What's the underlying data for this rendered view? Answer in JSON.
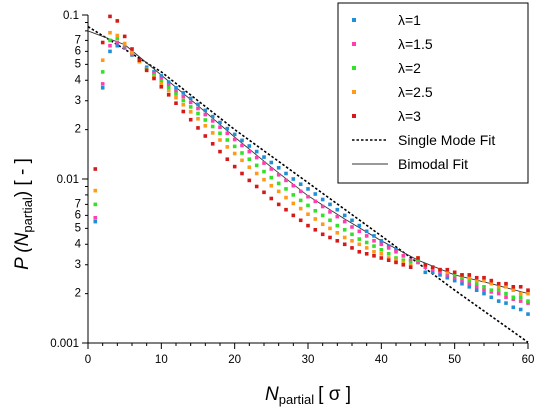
{
  "chart_data": {
    "type": "scatter",
    "title": "",
    "xlabel": {
      "main": "N",
      "sub": "partial",
      "unit": "[ σ ]"
    },
    "ylabel": {
      "main": "P (N",
      "sub": "partial",
      "tail": ") [ - ]"
    },
    "xlim": [
      0,
      60
    ],
    "ylim": [
      0.001,
      0.1
    ],
    "yscale": "log",
    "grid": false,
    "legend": "top-right",
    "x_ticks": [
      0,
      10,
      20,
      30,
      40,
      50,
      60
    ],
    "y_decade_labels": [
      "0.001",
      "0.01",
      "0.1"
    ],
    "y_minor_labels": [
      "2",
      "3",
      "4",
      "5",
      "6",
      "7"
    ],
    "series": [
      {
        "name": "λ=1",
        "color": "#1f8fd6",
        "x": [
          1,
          2,
          3,
          4,
          5,
          6,
          7,
          8,
          9,
          10,
          11,
          12,
          13,
          14,
          15,
          16,
          17,
          18,
          19,
          20,
          21,
          22,
          23,
          24,
          25,
          26,
          27,
          28,
          29,
          30,
          31,
          32,
          33,
          34,
          35,
          36,
          37,
          38,
          39,
          40,
          41,
          42,
          43,
          44,
          45,
          46,
          47,
          48,
          49,
          50,
          51,
          52,
          53,
          54,
          55,
          56,
          57,
          58,
          59,
          60
        ],
        "y": [
          0.0055,
          0.036,
          0.06,
          0.065,
          0.063,
          0.057,
          0.052,
          0.048,
          0.045,
          0.0425,
          0.039,
          0.036,
          0.0335,
          0.031,
          0.0285,
          0.0262,
          0.024,
          0.0221,
          0.0203,
          0.0187,
          0.0172,
          0.0159,
          0.0147,
          0.0136,
          0.0126,
          0.0117,
          0.0108,
          0.01,
          0.0093,
          0.0087,
          0.0081,
          0.0075,
          0.007,
          0.0065,
          0.006,
          0.0056,
          0.0052,
          0.0048,
          0.0045,
          0.0042,
          0.0039,
          0.0037,
          0.0034,
          0.0032,
          0.0031,
          0.0027,
          0.0027,
          0.0026,
          0.0025,
          0.0024,
          0.0023,
          0.0022,
          0.0021,
          0.002,
          0.0019,
          0.0018,
          0.00175,
          0.00165,
          0.0016,
          0.0015
        ]
      },
      {
        "name": "λ=1.5",
        "color": "#ff3eb0",
        "x": [
          1,
          2,
          3,
          4,
          5,
          6,
          7,
          8,
          9,
          10,
          11,
          12,
          13,
          14,
          15,
          16,
          17,
          18,
          19,
          20,
          21,
          22,
          23,
          24,
          25,
          26,
          27,
          28,
          29,
          30,
          31,
          32,
          33,
          34,
          35,
          36,
          37,
          38,
          39,
          40,
          41,
          42,
          43,
          44,
          45,
          46,
          47,
          48,
          49,
          50,
          51,
          52,
          53,
          54,
          55,
          56,
          57,
          58,
          59,
          60
        ],
        "y": [
          0.0058,
          0.038,
          0.065,
          0.068,
          0.064,
          0.058,
          0.052,
          0.047,
          0.044,
          0.041,
          0.0375,
          0.0345,
          0.0318,
          0.0293,
          0.0269,
          0.0247,
          0.0226,
          0.0207,
          0.019,
          0.0174,
          0.016,
          0.0147,
          0.0135,
          0.0125,
          0.0115,
          0.0106,
          0.0098,
          0.0091,
          0.0084,
          0.0078,
          0.0073,
          0.0068,
          0.0063,
          0.0059,
          0.0055,
          0.0051,
          0.0048,
          0.0045,
          0.0042,
          0.004,
          0.0038,
          0.0036,
          0.0034,
          0.0032,
          0.0031,
          0.0029,
          0.0028,
          0.0027,
          0.0026,
          0.0025,
          0.0024,
          0.0023,
          0.0022,
          0.0021,
          0.00205,
          0.002,
          0.0019,
          0.00185,
          0.0018,
          0.00175
        ]
      },
      {
        "name": "λ=2",
        "color": "#33e02a",
        "x": [
          1,
          2,
          3,
          4,
          5,
          6,
          7,
          8,
          9,
          10,
          11,
          12,
          13,
          14,
          15,
          16,
          17,
          18,
          19,
          20,
          21,
          22,
          23,
          24,
          25,
          26,
          27,
          28,
          29,
          30,
          31,
          32,
          33,
          34,
          35,
          36,
          37,
          38,
          39,
          40,
          41,
          42,
          43,
          44,
          45,
          46,
          47,
          48,
          49,
          50,
          51,
          52,
          53,
          54,
          55,
          56,
          57,
          58,
          59,
          60
        ],
        "y": [
          0.007,
          0.045,
          0.07,
          0.072,
          0.066,
          0.059,
          0.052,
          0.047,
          0.043,
          0.0395,
          0.036,
          0.033,
          0.0301,
          0.0275,
          0.0251,
          0.0229,
          0.0209,
          0.019,
          0.0173,
          0.0158,
          0.0144,
          0.0132,
          0.0121,
          0.0111,
          0.0102,
          0.0094,
          0.0087,
          0.008,
          0.0074,
          0.0069,
          0.0064,
          0.006,
          0.0056,
          0.0052,
          0.0049,
          0.0046,
          0.0043,
          0.0041,
          0.0039,
          0.0037,
          0.0035,
          0.0033,
          0.0032,
          0.0031,
          0.0032,
          0.003,
          0.0029,
          0.0028,
          0.0027,
          0.0026,
          0.0025,
          0.0024,
          0.0023,
          0.0022,
          0.0021,
          0.0021,
          0.002,
          0.0019,
          0.0019,
          0.0018
        ]
      },
      {
        "name": "λ=2.5",
        "color": "#ff9a1a",
        "x": [
          1,
          2,
          3,
          4,
          5,
          6,
          7,
          8,
          9,
          10,
          11,
          12,
          13,
          14,
          15,
          16,
          17,
          18,
          19,
          20,
          21,
          22,
          23,
          24,
          25,
          26,
          27,
          28,
          29,
          30,
          31,
          32,
          33,
          34,
          35,
          36,
          37,
          38,
          39,
          40,
          41,
          42,
          43,
          44,
          45,
          46,
          47,
          48,
          49,
          50,
          51,
          52,
          53,
          54,
          55,
          56,
          57,
          58,
          59,
          60
        ],
        "y": [
          0.0085,
          0.053,
          0.078,
          0.075,
          0.067,
          0.059,
          0.052,
          0.046,
          0.042,
          0.038,
          0.0345,
          0.0313,
          0.0284,
          0.0257,
          0.0233,
          0.0211,
          0.0191,
          0.0173,
          0.0157,
          0.0143,
          0.013,
          0.0118,
          0.0108,
          0.0099,
          0.0091,
          0.0084,
          0.0077,
          0.0071,
          0.0066,
          0.0061,
          0.0057,
          0.0053,
          0.005,
          0.0047,
          0.0044,
          0.0042,
          0.004,
          0.0038,
          0.0036,
          0.0035,
          0.0033,
          0.0032,
          0.0031,
          0.003,
          0.0033,
          0.003,
          0.0029,
          0.0028,
          0.0027,
          0.0027,
          0.0026,
          0.0025,
          0.0024,
          0.0024,
          0.0023,
          0.0022,
          0.0022,
          0.0021,
          0.002,
          0.002
        ]
      },
      {
        "name": "λ=3",
        "color": "#d61a1a",
        "x": [
          1,
          2,
          3,
          4,
          5,
          6,
          7,
          8,
          9,
          10,
          11,
          12,
          13,
          14,
          15,
          16,
          17,
          18,
          19,
          20,
          21,
          22,
          23,
          24,
          25,
          26,
          27,
          28,
          29,
          30,
          31,
          32,
          33,
          34,
          35,
          36,
          37,
          38,
          39,
          40,
          41,
          42,
          43,
          44,
          45,
          46,
          47,
          48,
          49,
          50,
          51,
          52,
          53,
          54,
          55,
          56,
          57,
          58,
          59,
          60
        ],
        "y": [
          0.0115,
          0.068,
          0.098,
          0.092,
          0.074,
          0.062,
          0.053,
          0.046,
          0.041,
          0.0365,
          0.0326,
          0.029,
          0.0258,
          0.023,
          0.0205,
          0.0183,
          0.0164,
          0.0147,
          0.0132,
          0.0119,
          0.0108,
          0.0098,
          0.009,
          0.0083,
          0.0076,
          0.007,
          0.0065,
          0.006,
          0.0056,
          0.0052,
          0.0049,
          0.0046,
          0.0044,
          0.0042,
          0.004,
          0.0038,
          0.0036,
          0.0035,
          0.0034,
          0.0033,
          0.0032,
          0.0031,
          0.003,
          0.0029,
          0.0033,
          0.003,
          0.0029,
          0.0028,
          0.0028,
          0.0027,
          0.0026,
          0.0026,
          0.0025,
          0.0025,
          0.0024,
          0.0023,
          0.0023,
          0.0022,
          0.0022,
          0.0021
        ]
      }
    ],
    "fits": [
      {
        "name": "Single Mode Fit",
        "style": "dotted",
        "color": "#000000",
        "x": [
          0,
          10,
          20,
          30,
          40,
          50,
          60
        ],
        "y": [
          0.085,
          0.045,
          0.02,
          0.0095,
          0.0045,
          0.0021,
          0.00101
        ]
      },
      {
        "name": "Bimodal Fit",
        "style": "solid",
        "color": "#333333",
        "x": [
          0,
          5,
          10,
          15,
          20,
          25,
          30,
          35,
          40,
          45,
          50,
          55,
          60
        ],
        "y": [
          0.08,
          0.066,
          0.043,
          0.028,
          0.018,
          0.0118,
          0.0079,
          0.0057,
          0.0042,
          0.0032,
          0.0026,
          0.0023,
          0.002
        ]
      }
    ]
  }
}
